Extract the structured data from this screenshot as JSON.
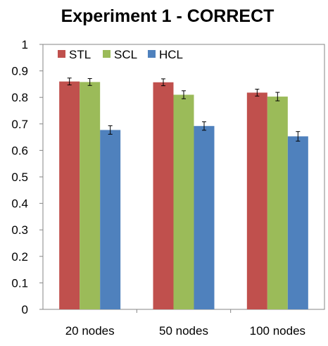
{
  "chart_data": {
    "type": "bar",
    "title": "Experiment 1 - CORRECT",
    "xlabel": "",
    "ylabel": "",
    "ylim": [
      0,
      1
    ],
    "yticks": [
      "0",
      "0.1",
      "0.2",
      "0.3",
      "0.4",
      "0.5",
      "0.6",
      "0.7",
      "0.8",
      "0.9",
      "1"
    ],
    "grid": false,
    "legend_position": "top-left",
    "categories": [
      "20 nodes",
      "50 nodes",
      "100 nodes"
    ],
    "series": [
      {
        "name": "STL",
        "color": "#c0504d",
        "values": [
          0.86,
          0.857,
          0.818
        ],
        "errors": [
          0.013,
          0.013,
          0.013
        ]
      },
      {
        "name": "SCL",
        "color": "#9bbb59",
        "values": [
          0.858,
          0.81,
          0.803
        ],
        "errors": [
          0.013,
          0.015,
          0.016
        ]
      },
      {
        "name": "HCL",
        "color": "#4f81bd",
        "values": [
          0.677,
          0.692,
          0.653
        ],
        "errors": [
          0.016,
          0.016,
          0.018
        ]
      }
    ]
  }
}
